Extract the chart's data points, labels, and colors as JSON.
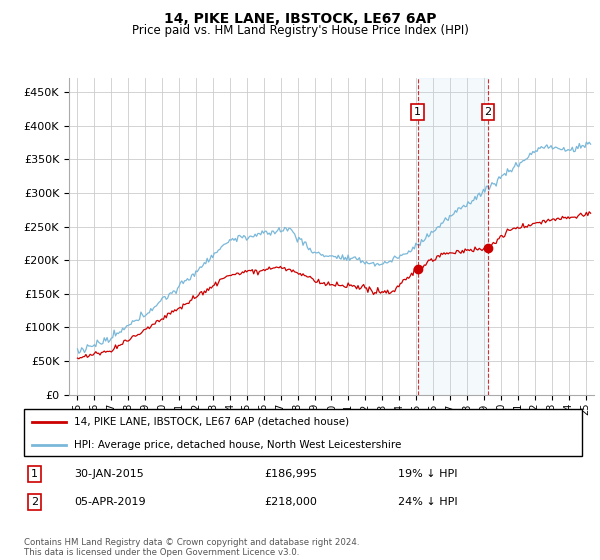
{
  "title": "14, PIKE LANE, IBSTOCK, LE67 6AP",
  "subtitle": "Price paid vs. HM Land Registry's House Price Index (HPI)",
  "ylabel_ticks": [
    "£0",
    "£50K",
    "£100K",
    "£150K",
    "£200K",
    "£250K",
    "£300K",
    "£350K",
    "£400K",
    "£450K"
  ],
  "ytick_values": [
    0,
    50000,
    100000,
    150000,
    200000,
    250000,
    300000,
    350000,
    400000,
    450000
  ],
  "ylim": [
    0,
    470000
  ],
  "xlim_start": 1994.5,
  "xlim_end": 2025.5,
  "hpi_color": "#7ab8d9",
  "price_color": "#cc0000",
  "marker1_date": 2015.08,
  "marker2_date": 2019.25,
  "marker1_price": 186995,
  "marker2_price": 218000,
  "legend_label1": "14, PIKE LANE, IBSTOCK, LE67 6AP (detached house)",
  "legend_label2": "HPI: Average price, detached house, North West Leicestershire",
  "annotation1_text": "30-JAN-2015",
  "annotation1_price": "£186,995",
  "annotation1_hpi": "19% ↓ HPI",
  "annotation2_text": "05-APR-2019",
  "annotation2_price": "£218,000",
  "annotation2_hpi": "24% ↓ HPI",
  "footer": "Contains HM Land Registry data © Crown copyright and database right 2024.\nThis data is licensed under the Open Government Licence v3.0.",
  "background_color": "#ffffff",
  "grid_color": "#cccccc"
}
